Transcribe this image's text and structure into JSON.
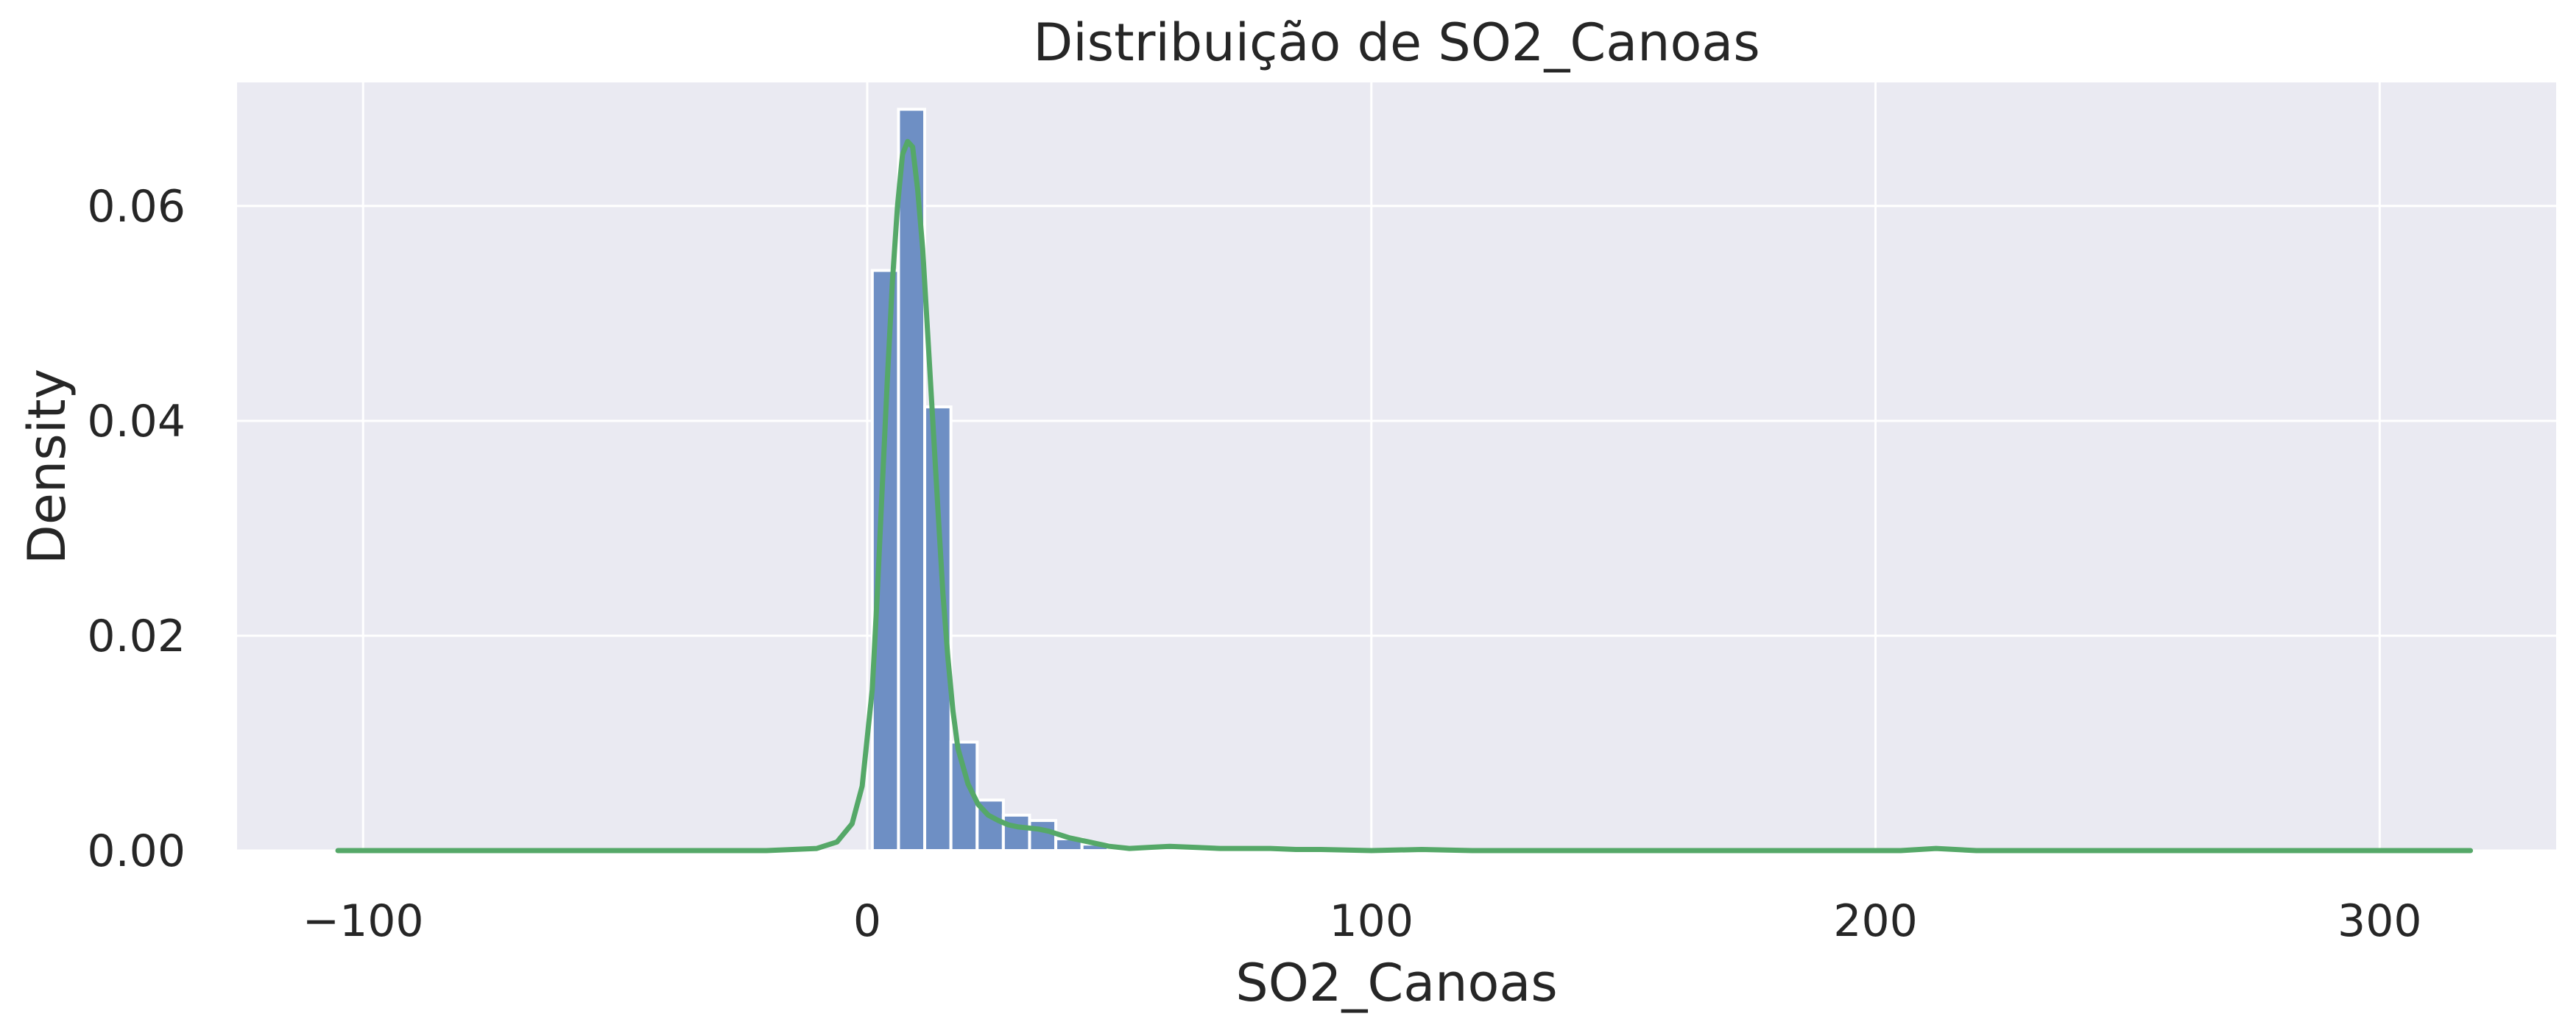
{
  "chart_data": {
    "type": "bar",
    "title": "Distribuição de SO2_Canoas",
    "xlabel": "SO2_Canoas",
    "ylabel": "Density",
    "xlim": [
      -125,
      335
    ],
    "ylim": [
      0,
      0.0715
    ],
    "x_ticks": [
      {
        "value": -100,
        "label": "−100"
      },
      {
        "value": 0,
        "label": "0"
      },
      {
        "value": 100,
        "label": "100"
      },
      {
        "value": 200,
        "label": "200"
      },
      {
        "value": 300,
        "label": "300"
      }
    ],
    "y_ticks": [
      {
        "value": 0.0,
        "label": "0.00"
      },
      {
        "value": 0.02,
        "label": "0.02"
      },
      {
        "value": 0.04,
        "label": "0.04"
      },
      {
        "value": 0.06,
        "label": "0.06"
      }
    ],
    "grid": true,
    "histogram": {
      "bin_width": 5.2,
      "bins": [
        {
          "x0": 1.0,
          "density": 0.054
        },
        {
          "x0": 6.2,
          "density": 0.069
        },
        {
          "x0": 11.4,
          "density": 0.0413
        },
        {
          "x0": 16.6,
          "density": 0.0101
        },
        {
          "x0": 21.8,
          "density": 0.0047
        },
        {
          "x0": 27.0,
          "density": 0.0033
        },
        {
          "x0": 32.2,
          "density": 0.0028
        },
        {
          "x0": 37.4,
          "density": 0.0011
        },
        {
          "x0": 42.6,
          "density": 0.0006
        },
        {
          "x0": 47.8,
          "density": 0.0002
        },
        {
          "x0": 53.0,
          "density": 0.0002
        },
        {
          "x0": 58.2,
          "density": 0.0003
        },
        {
          "x0": 63.4,
          "density": 0.0001
        },
        {
          "x0": 68.6,
          "density": 0.0001
        },
        {
          "x0": 73.8,
          "density": 0.0001
        },
        {
          "x0": 79.0,
          "density": 0.0001
        }
      ]
    },
    "kde": {
      "x": [
        -105,
        -20,
        -10,
        -6,
        -3,
        -1,
        1,
        2,
        3,
        4,
        5,
        6,
        7,
        8,
        9,
        10,
        11,
        12,
        13,
        14,
        15,
        16,
        17,
        18,
        20,
        22,
        24,
        26,
        28,
        30,
        32,
        34,
        36,
        38,
        40,
        44,
        48,
        52,
        56,
        60,
        65,
        70,
        75,
        80,
        85,
        90,
        100,
        110,
        120,
        150,
        190,
        205,
        212,
        220,
        240,
        280,
        318
      ],
      "y": [
        0.0,
        0.0,
        0.0002,
        0.0008,
        0.0025,
        0.006,
        0.015,
        0.024,
        0.034,
        0.044,
        0.053,
        0.06,
        0.0648,
        0.066,
        0.0655,
        0.0615,
        0.056,
        0.048,
        0.04,
        0.032,
        0.024,
        0.018,
        0.013,
        0.0095,
        0.0062,
        0.0043,
        0.0033,
        0.0028,
        0.0024,
        0.0022,
        0.0021,
        0.002,
        0.0018,
        0.0015,
        0.0012,
        0.0008,
        0.0004,
        0.0002,
        0.0003,
        0.0004,
        0.0003,
        0.0002,
        0.0002,
        0.0002,
        0.0001,
        0.0001,
        0.0,
        0.0001,
        0.0,
        0.0,
        0.0,
        0.0,
        0.0002,
        0.0,
        0.0,
        0.0,
        0.0
      ]
    },
    "colors": {
      "background": "#eaeaf2",
      "grid": "#ffffff",
      "bars": "#6e8fc4",
      "bar_edge": "#ffffff",
      "kde": "#55a868",
      "text": "#262626"
    }
  }
}
